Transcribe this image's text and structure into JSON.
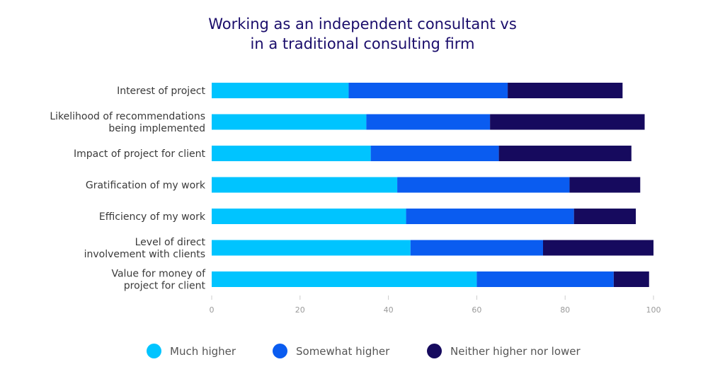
{
  "title_lines": [
    "Working as an independent consultant vs",
    "in a traditional consulting firm"
  ],
  "colors": {
    "much_higher": "#00c4ff",
    "somewhat_higher": "#0a5cf0",
    "neither": "#160a5e"
  },
  "chart_data": {
    "type": "bar",
    "orientation": "horizontal",
    "stacked": true,
    "title": "Working as an independent consultant vs in a traditional consulting firm",
    "categories": [
      [
        "Interest of project"
      ],
      [
        "Likelihood of recommendations",
        "being implemented"
      ],
      [
        "Impact of project for client"
      ],
      [
        "Gratification of my work"
      ],
      [
        "Efficiency of my work"
      ],
      [
        "Level of direct",
        "involvement with clients"
      ],
      [
        "Value for money of",
        "project for client"
      ]
    ],
    "series": [
      {
        "name": "Much higher",
        "values": [
          31,
          35,
          36,
          42,
          44,
          45,
          60
        ]
      },
      {
        "name": "Somewhat higher",
        "values": [
          36,
          28,
          29,
          39,
          38,
          30,
          31
        ]
      },
      {
        "name": "Neither higher nor lower",
        "values": [
          26,
          35,
          30,
          16,
          14,
          25,
          8
        ]
      }
    ],
    "xlim": [
      0,
      100
    ],
    "xticks": [
      "0",
      "20",
      "40",
      "60",
      "80",
      "100"
    ],
    "xlabel": "",
    "ylabel": "",
    "grid": false,
    "legend_position": "bottom"
  }
}
